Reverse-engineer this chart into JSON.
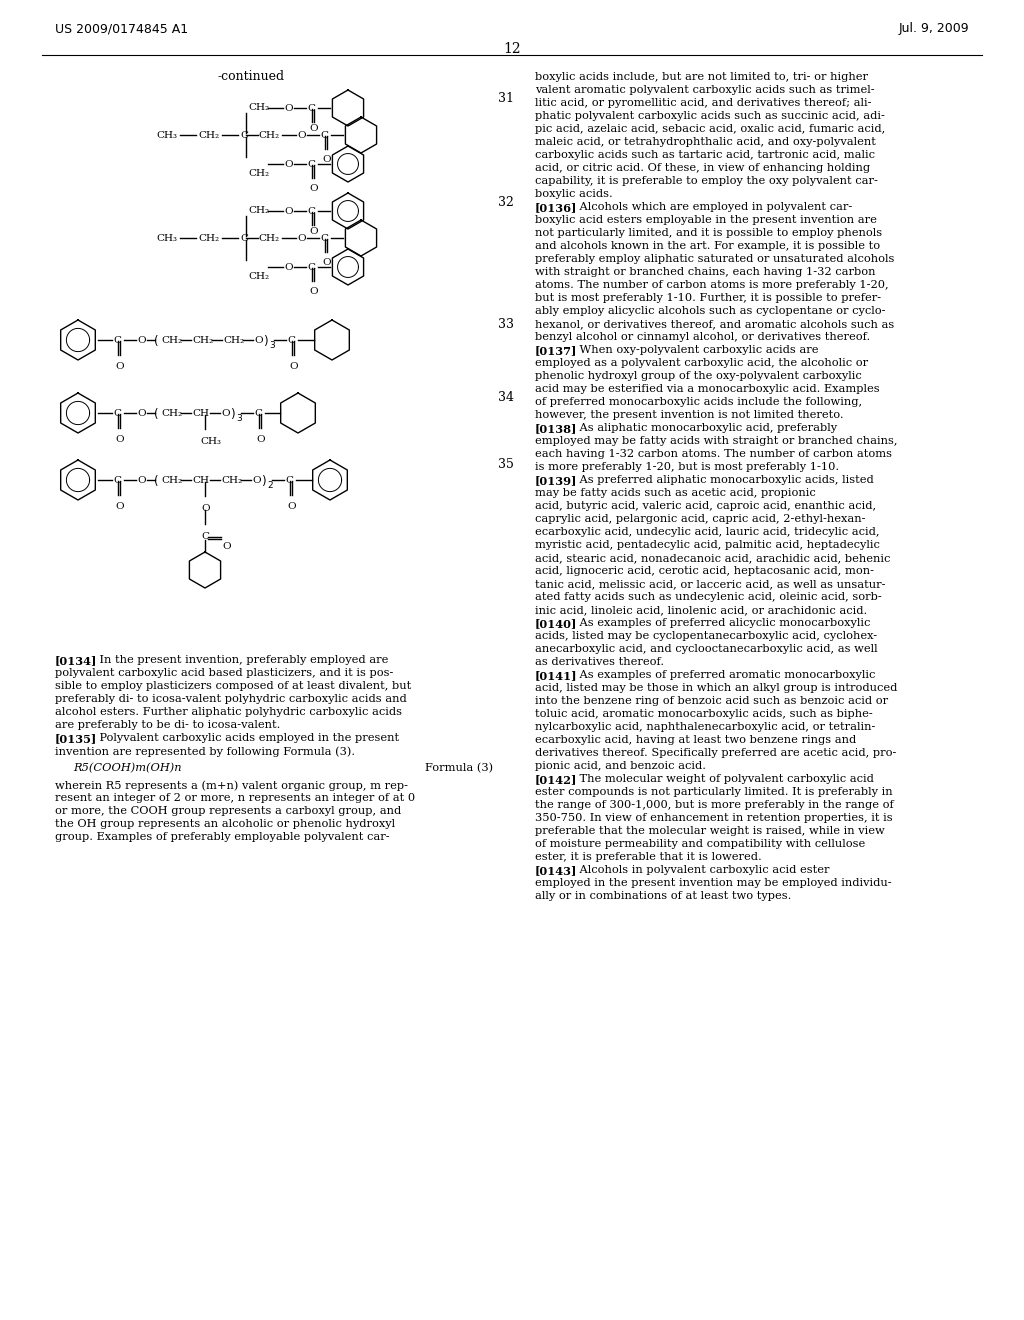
{
  "background_color": "#ffffff",
  "header_left": "US 2009/0174845 A1",
  "header_right": "Jul. 9, 2009",
  "page_number": "12",
  "continued_label": "-continued",
  "right_body_text": [
    "boxylic acids include, but are not limited to, tri- or higher",
    "valent aromatic polyvalent carboxylic acids such as trimel-",
    "litic acid, or pyromellitic acid, and derivatives thereof; ali-",
    "phatic polyvalent carboxylic acids such as succinic acid, adi-",
    "pic acid, azelaic acid, sebacic acid, oxalic acid, fumaric acid,",
    "maleic acid, or tetrahydrophthalic acid, and oxy-polyvalent",
    "carboxylic acids such as tartaric acid, tartronic acid, malic",
    "acid, or citric acid. Of these, in view of enhancing holding",
    "capability, it is preferable to employ the oxy polyvalent car-",
    "boxylic acids.",
    {
      "bold": "[0136]",
      "rest": "    Alcohols which are employed in polyvalent car-"
    },
    "boxylic acid esters employable in the present invention are",
    "not particularly limited, and it is possible to employ phenols",
    "and alcohols known in the art. For example, it is possible to",
    "preferably employ aliphatic saturated or unsaturated alcohols",
    "with straight or branched chains, each having 1-32 carbon",
    "atoms. The number of carbon atoms is more preferably 1-20,",
    "but is most preferably 1-10. Further, it is possible to prefer-",
    "ably employ alicyclic alcohols such as cyclopentane or cyclo-",
    "hexanol, or derivatives thereof, and aromatic alcohols such as",
    "benzyl alcohol or cinnamyl alcohol, or derivatives thereof.",
    {
      "bold": "[0137]",
      "rest": "    When oxy-polyvalent carboxylic acids are"
    },
    "employed as a polyvalent carboxylic acid, the alcoholic or",
    "phenolic hydroxyl group of the oxy-polyvalent carboxylic",
    "acid may be esterified via a monocarboxylic acid. Examples",
    "of preferred monocarboxylic acids include the following,",
    "however, the present invention is not limited thereto.",
    {
      "bold": "[0138]",
      "rest": "    As aliphatic monocarboxylic acid, preferably"
    },
    "employed may be fatty acids with straight or branched chains,",
    "each having 1-32 carbon atoms. The number of carbon atoms",
    "is more preferably 1-20, but is most preferably 1-10.",
    {
      "bold": "[0139]",
      "rest": "    As preferred aliphatic monocarboxylic acids, listed"
    },
    "may be fatty acids such as acetic acid, propionic",
    "acid, butyric acid, valeric acid, caproic acid, enanthic acid,",
    "caprylic acid, pelargonic acid, capric acid, 2-ethyl-hexan-",
    "ecarboxylic acid, undecylic acid, lauric acid, tridecylic acid,",
    "myristic acid, pentadecylic acid, palmitic acid, heptadecylic",
    "acid, stearic acid, nonadecanoic acid, arachidic acid, behenic",
    "acid, lignoceric acid, cerotic acid, heptacosanic acid, mon-",
    "tanic acid, melissic acid, or lacceric acid, as well as unsatur-",
    "ated fatty acids such as undecylenic acid, oleinic acid, sorb-",
    "inic acid, linoleic acid, linolenic acid, or arachidonic acid.",
    {
      "bold": "[0140]",
      "rest": "    As examples of preferred alicyclic monocarboxylic"
    },
    "acids, listed may be cyclopentanecarboxylic acid, cyclohex-",
    "anecarboxylic acid, and cyclooctanecarboxylic acid, as well",
    "as derivatives thereof.",
    {
      "bold": "[0141]",
      "rest": "    As examples of preferred aromatic monocarboxylic"
    },
    "acid, listed may be those in which an alkyl group is introduced",
    "into the benzene ring of benzoic acid such as benzoic acid or",
    "toluic acid, aromatic monocarboxylic acids, such as biphe-",
    "nylcarboxylic acid, naphthalenecarboxylic acid, or tetralin-",
    "ecarboxylic acid, having at least two benzene rings and",
    "derivatives thereof. Specifically preferred are acetic acid, pro-",
    "pionic acid, and benzoic acid.",
    {
      "bold": "[0142]",
      "rest": "    The molecular weight of polyvalent carboxylic acid"
    },
    "ester compounds is not particularly limited. It is preferably in",
    "the range of 300-1,000, but is more preferably in the range of",
    "350-750. In view of enhancement in retention properties, it is",
    "preferable that the molecular weight is raised, while in view",
    "of moisture permeability and compatibility with cellulose",
    "ester, it is preferable that it is lowered.",
    {
      "bold": "[0143]",
      "rest": "    Alcohols in polyvalent carboxylic acid ester"
    },
    "employed in the present invention may be employed individu-",
    "ally or in combinations of at least two types."
  ],
  "left_bottom_text": [
    {
      "bold": "[0134]",
      "rest": "    In the present invention, preferably employed are"
    },
    "polyvalent carboxylic acid based plasticizers, and it is pos-",
    "sible to employ plasticizers composed of at least divalent, but",
    "preferably di- to icosa-valent polyhydric carboxylic acids and",
    "alcohol esters. Further aliphatic polyhydric carboxylic acids",
    "are preferably to be di- to icosa-valent.",
    {
      "bold": "[0135]",
      "rest": "    Polyvalent carboxylic acids employed in the present"
    },
    "invention are represented by following Formula (3)."
  ],
  "formula_line": "R5(COOH)m(OH)n",
  "formula_label": "Formula (3)",
  "wherein_text": [
    "wherein R5 represents a (m+n) valent organic group, m rep-",
    "resent an integer of 2 or more, n represents an integer of at 0",
    "or more, the COOH group represents a carboxyl group, and",
    "the OH group represents an alcoholic or phenolic hydroxyl",
    "group. Examples of preferably employable polyvalent car-"
  ]
}
